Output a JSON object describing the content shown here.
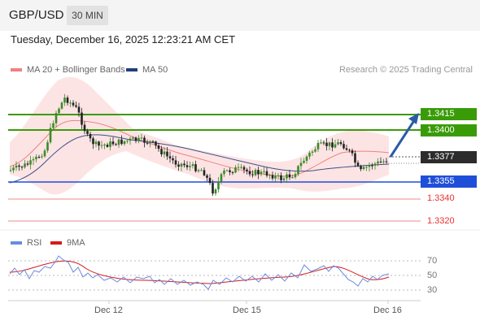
{
  "header": {
    "symbol": "GBP/USD",
    "timeframe": "30 MIN",
    "datetime": "Tuesday, December 16, 2025 12:23:21 AM CET"
  },
  "legend": {
    "ma20_label": "MA 20 + Bollinger Bands",
    "ma50_label": "MA 50",
    "copyright": "Research © 2025 Trading Central",
    "colors": {
      "ma20": "#f08080",
      "ma50": "#1f3f7a",
      "band": "#fde3e3"
    }
  },
  "levels": {
    "resistance": [
      "1.3415",
      "1.3400"
    ],
    "current": "1.3377",
    "pivot": "1.3355",
    "support": [
      "1.3340",
      "1.3320"
    ],
    "colors": {
      "resistance": "#3a9b09",
      "pivot": "#1f4fd8",
      "support": "#e8312a"
    }
  },
  "rsi": {
    "rsi_label": "RSI",
    "ma_label": "9MA",
    "ticks": [
      "70",
      "50",
      "30"
    ],
    "colors": {
      "rsi": "#4a72d8",
      "ma": "#d61a1a"
    }
  },
  "xaxis": {
    "dates": [
      "Dec 12",
      "Dec 15",
      "Dec 16"
    ]
  }
}
